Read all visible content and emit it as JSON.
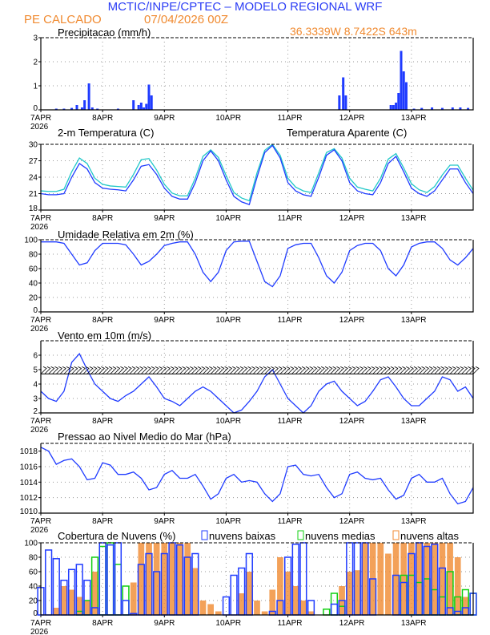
{
  "header": {
    "title": "MCTIC/INPE/CPTEC – MODELO REGIONAL WRF",
    "location": "PE CALCADO",
    "run": "07/04/2026 00Z",
    "coords": "36.3339W 8.7422S 643m"
  },
  "colors": {
    "blue": "#1f3bff",
    "orange": "#f08a30",
    "cyan": "#20c8c8",
    "green": "#10d010",
    "title": "#2a3cf5"
  },
  "chart_data": {
    "days": [
      "7APR",
      "8APR",
      "9APR",
      "10APR",
      "11APR",
      "12APR",
      "13APR"
    ],
    "year": "2026",
    "hours_step": 3,
    "panels": {
      "precip": {
        "type": "bar",
        "title": "Precipitacao (mm/h)",
        "ylim": [
          0,
          3
        ],
        "yticks": [
          "0",
          "1",
          "2",
          "3"
        ],
        "bars": [
          [
            6,
            0.05
          ],
          [
            9,
            0.05
          ],
          [
            12,
            0.08
          ],
          [
            14,
            0.2
          ],
          [
            16,
            0.1
          ],
          [
            17,
            0.4
          ],
          [
            18.7,
            1.1
          ],
          [
            20,
            0.1
          ],
          [
            22,
            0.05
          ],
          [
            30,
            0.05
          ],
          [
            36,
            0.4
          ],
          [
            38,
            0.2
          ],
          [
            39,
            0.3
          ],
          [
            40,
            0.1
          ],
          [
            41,
            0.25
          ],
          [
            42,
            1.05
          ],
          [
            43,
            0.6
          ],
          [
            116,
            0.6
          ],
          [
            117.5,
            1.35
          ],
          [
            118.5,
            0.6
          ],
          [
            136,
            0.2
          ],
          [
            137,
            0.2
          ],
          [
            138,
            0.3
          ],
          [
            139,
            0.7
          ],
          [
            140,
            2.45
          ],
          [
            141,
            1.6
          ],
          [
            142,
            1.15
          ],
          [
            145,
            0.05
          ],
          [
            148,
            0.08
          ],
          [
            152,
            0.1
          ],
          [
            156,
            0.08
          ],
          [
            160,
            0.1
          ],
          [
            163,
            0.1
          ],
          [
            166,
            0.08
          ]
        ]
      },
      "temp": {
        "type": "line",
        "title": "2-m Temperatura (C)",
        "title2": "Temperatura Aparente (C)",
        "ylim": [
          18,
          30
        ],
        "yticks": [
          "18",
          "21",
          "24",
          "27",
          "30"
        ],
        "series": [
          {
            "name": "2-m Temperatura (C)",
            "values": [
              21,
              20.8,
              20.8,
              21,
              24,
              26.5,
              25.5,
              23,
              22,
              21.8,
              21.7,
              21.5,
              23.5,
              26,
              26.3,
              24.5,
              22,
              20.5,
              20,
              20,
              23,
              27,
              28.8,
              27,
              23.5,
              20.5,
              19.5,
              19,
              24,
              28.5,
              29.8,
              27.5,
              23,
              21.5,
              20.8,
              20.5,
              24,
              28,
              29,
              27,
              23,
              21.5,
              21,
              20.8,
              23,
              26.5,
              27.8,
              25,
              22,
              21,
              20.5,
              21.5,
              23.5,
              25.5,
              25.5,
              23,
              21
            ]
          },
          {
            "name": "Temperatura Aparente (C)",
            "values": [
              21.5,
              21.4,
              21.4,
              21.8,
              25,
              27.5,
              26.5,
              23.8,
              22.7,
              22.4,
              22.3,
              22.2,
              24.5,
              27.2,
              27.4,
              25.3,
              22.7,
              21.1,
              20.6,
              20.6,
              23.8,
              27.8,
              29,
              27.6,
              24.3,
              21.2,
              20.2,
              19.7,
              24.8,
              28.9,
              30,
              28,
              23.8,
              22.2,
              21.5,
              21.2,
              24.8,
              28.5,
              29.2,
              27.5,
              23.8,
              22.2,
              21.8,
              21.5,
              23.8,
              27.3,
              28.3,
              25.7,
              22.8,
              21.7,
              21.2,
              22.3,
              24.4,
              26.2,
              26.2,
              23.8,
              21.6
            ]
          }
        ]
      },
      "rh": {
        "type": "line",
        "title": "Umidade Relativa em 2m (%)",
        "ylim": [
          0,
          100
        ],
        "yticks": [
          "0",
          "20",
          "40",
          "60",
          "80",
          "100"
        ],
        "values": [
          97,
          97,
          97,
          95,
          80,
          65,
          68,
          85,
          95,
          95,
          95,
          93,
          80,
          65,
          70,
          80,
          92,
          95,
          97,
          97,
          80,
          55,
          42,
          55,
          85,
          97,
          98,
          98,
          70,
          42,
          35,
          50,
          88,
          93,
          95,
          95,
          75,
          50,
          40,
          55,
          85,
          92,
          95,
          95,
          85,
          60,
          50,
          65,
          90,
          95,
          97,
          97,
          88,
          72,
          65,
          75,
          88
        ]
      },
      "wind": {
        "type": "line",
        "title": "Vento em 10m (m/s)",
        "ylim": [
          2,
          7
        ],
        "yticks": [
          "2",
          "3",
          "4",
          "5",
          "6"
        ],
        "values": [
          3.5,
          3,
          2.8,
          3.5,
          5.5,
          6.1,
          5,
          4,
          3.5,
          3,
          2.8,
          3.2,
          3.5,
          4,
          4.5,
          3.8,
          3,
          2.8,
          2.5,
          3,
          3.5,
          3.8,
          3.5,
          3,
          2.5,
          2,
          2.2,
          2.8,
          3.5,
          4.5,
          5,
          4,
          3,
          2.5,
          2,
          2.5,
          3.5,
          4,
          4.2,
          3.5,
          3,
          2.5,
          2.8,
          3.5,
          4.3,
          4.5,
          3.8,
          3,
          2.5,
          2.5,
          3,
          3.5,
          4.5,
          4.3,
          3.5,
          3.8,
          3
        ]
      },
      "pressure": {
        "type": "line",
        "title": "Pressao ao Nivel Medio do Mar (hPa)",
        "ylim": [
          1010,
          1019
        ],
        "yticks": [
          "1010",
          "1012",
          "1014",
          "1016",
          "1018"
        ],
        "values": [
          1018.5,
          1018,
          1016.3,
          1016.8,
          1017,
          1016,
          1014.3,
          1014.5,
          1016.5,
          1016.2,
          1015,
          1015,
          1015.3,
          1014.5,
          1013,
          1013.3,
          1015,
          1015.5,
          1014.5,
          1014.5,
          1015,
          1013.5,
          1011.8,
          1012.5,
          1014.5,
          1015,
          1014,
          1014.2,
          1014,
          1012.5,
          1011.5,
          1012.5,
          1016,
          1016.2,
          1015,
          1014.8,
          1015,
          1013.3,
          1012,
          1012.5,
          1015,
          1015.3,
          1014.5,
          1014.3,
          1014.5,
          1013,
          1011.8,
          1012.3,
          1014.5,
          1015,
          1014,
          1014,
          1014.5,
          1012.5,
          1011.2,
          1011.5,
          1013.3
        ]
      },
      "clouds": {
        "type": "bar",
        "title": "Cobertura de Nuvens (%)",
        "ylim": [
          0,
          100
        ],
        "yticks": [
          "0",
          "20",
          "40",
          "60",
          "80",
          "100"
        ],
        "series": [
          {
            "name": "nuvens altas",
            "values": [
              0,
              0,
              10,
              40,
              35,
              25,
              20,
              60,
              0,
              0,
              0,
              0,
              45,
              100,
              100,
              100,
              100,
              100,
              100,
              100,
              65,
              20,
              15,
              5,
              0,
              0,
              30,
              60,
              20,
              5,
              35,
              80,
              60,
              40,
              20,
              5,
              0,
              0,
              0,
              40,
              60,
              62,
              100,
              100,
              100,
              85,
              100,
              100,
              100,
              100,
              100,
              100,
              100,
              100,
              80,
              25,
              0
            ]
          },
          {
            "name": "nuvens medias",
            "values": [
              0,
              0,
              0,
              0,
              0,
              5,
              20,
              80,
              95,
              100,
              70,
              40,
              0,
              0,
              0,
              0,
              0,
              0,
              0,
              0,
              0,
              0,
              0,
              0,
              0,
              0,
              0,
              0,
              0,
              0,
              0,
              0,
              0,
              0,
              0,
              0,
              0,
              8,
              30,
              12,
              0,
              0,
              0,
              0,
              0,
              0,
              0,
              55,
              55,
              45,
              50,
              35,
              25,
              60,
              25,
              35,
              30
            ]
          },
          {
            "name": "nuvens baixas",
            "values": [
              38,
              90,
              78,
              48,
              63,
              70,
              48,
              10,
              100,
              97,
              100,
              20,
              2,
              70,
              85,
              60,
              85,
              100,
              97,
              80,
              85,
              0,
              0,
              0,
              25,
              55,
              65,
              85,
              0,
              0,
              5,
              20,
              80,
              98,
              100,
              20,
              0,
              0,
              15,
              20,
              100,
              100,
              100,
              50,
              0,
              0,
              55,
              45,
              85,
              100,
              95,
              98,
              65,
              10,
              5,
              10,
              30
            ]
          }
        ]
      }
    }
  }
}
